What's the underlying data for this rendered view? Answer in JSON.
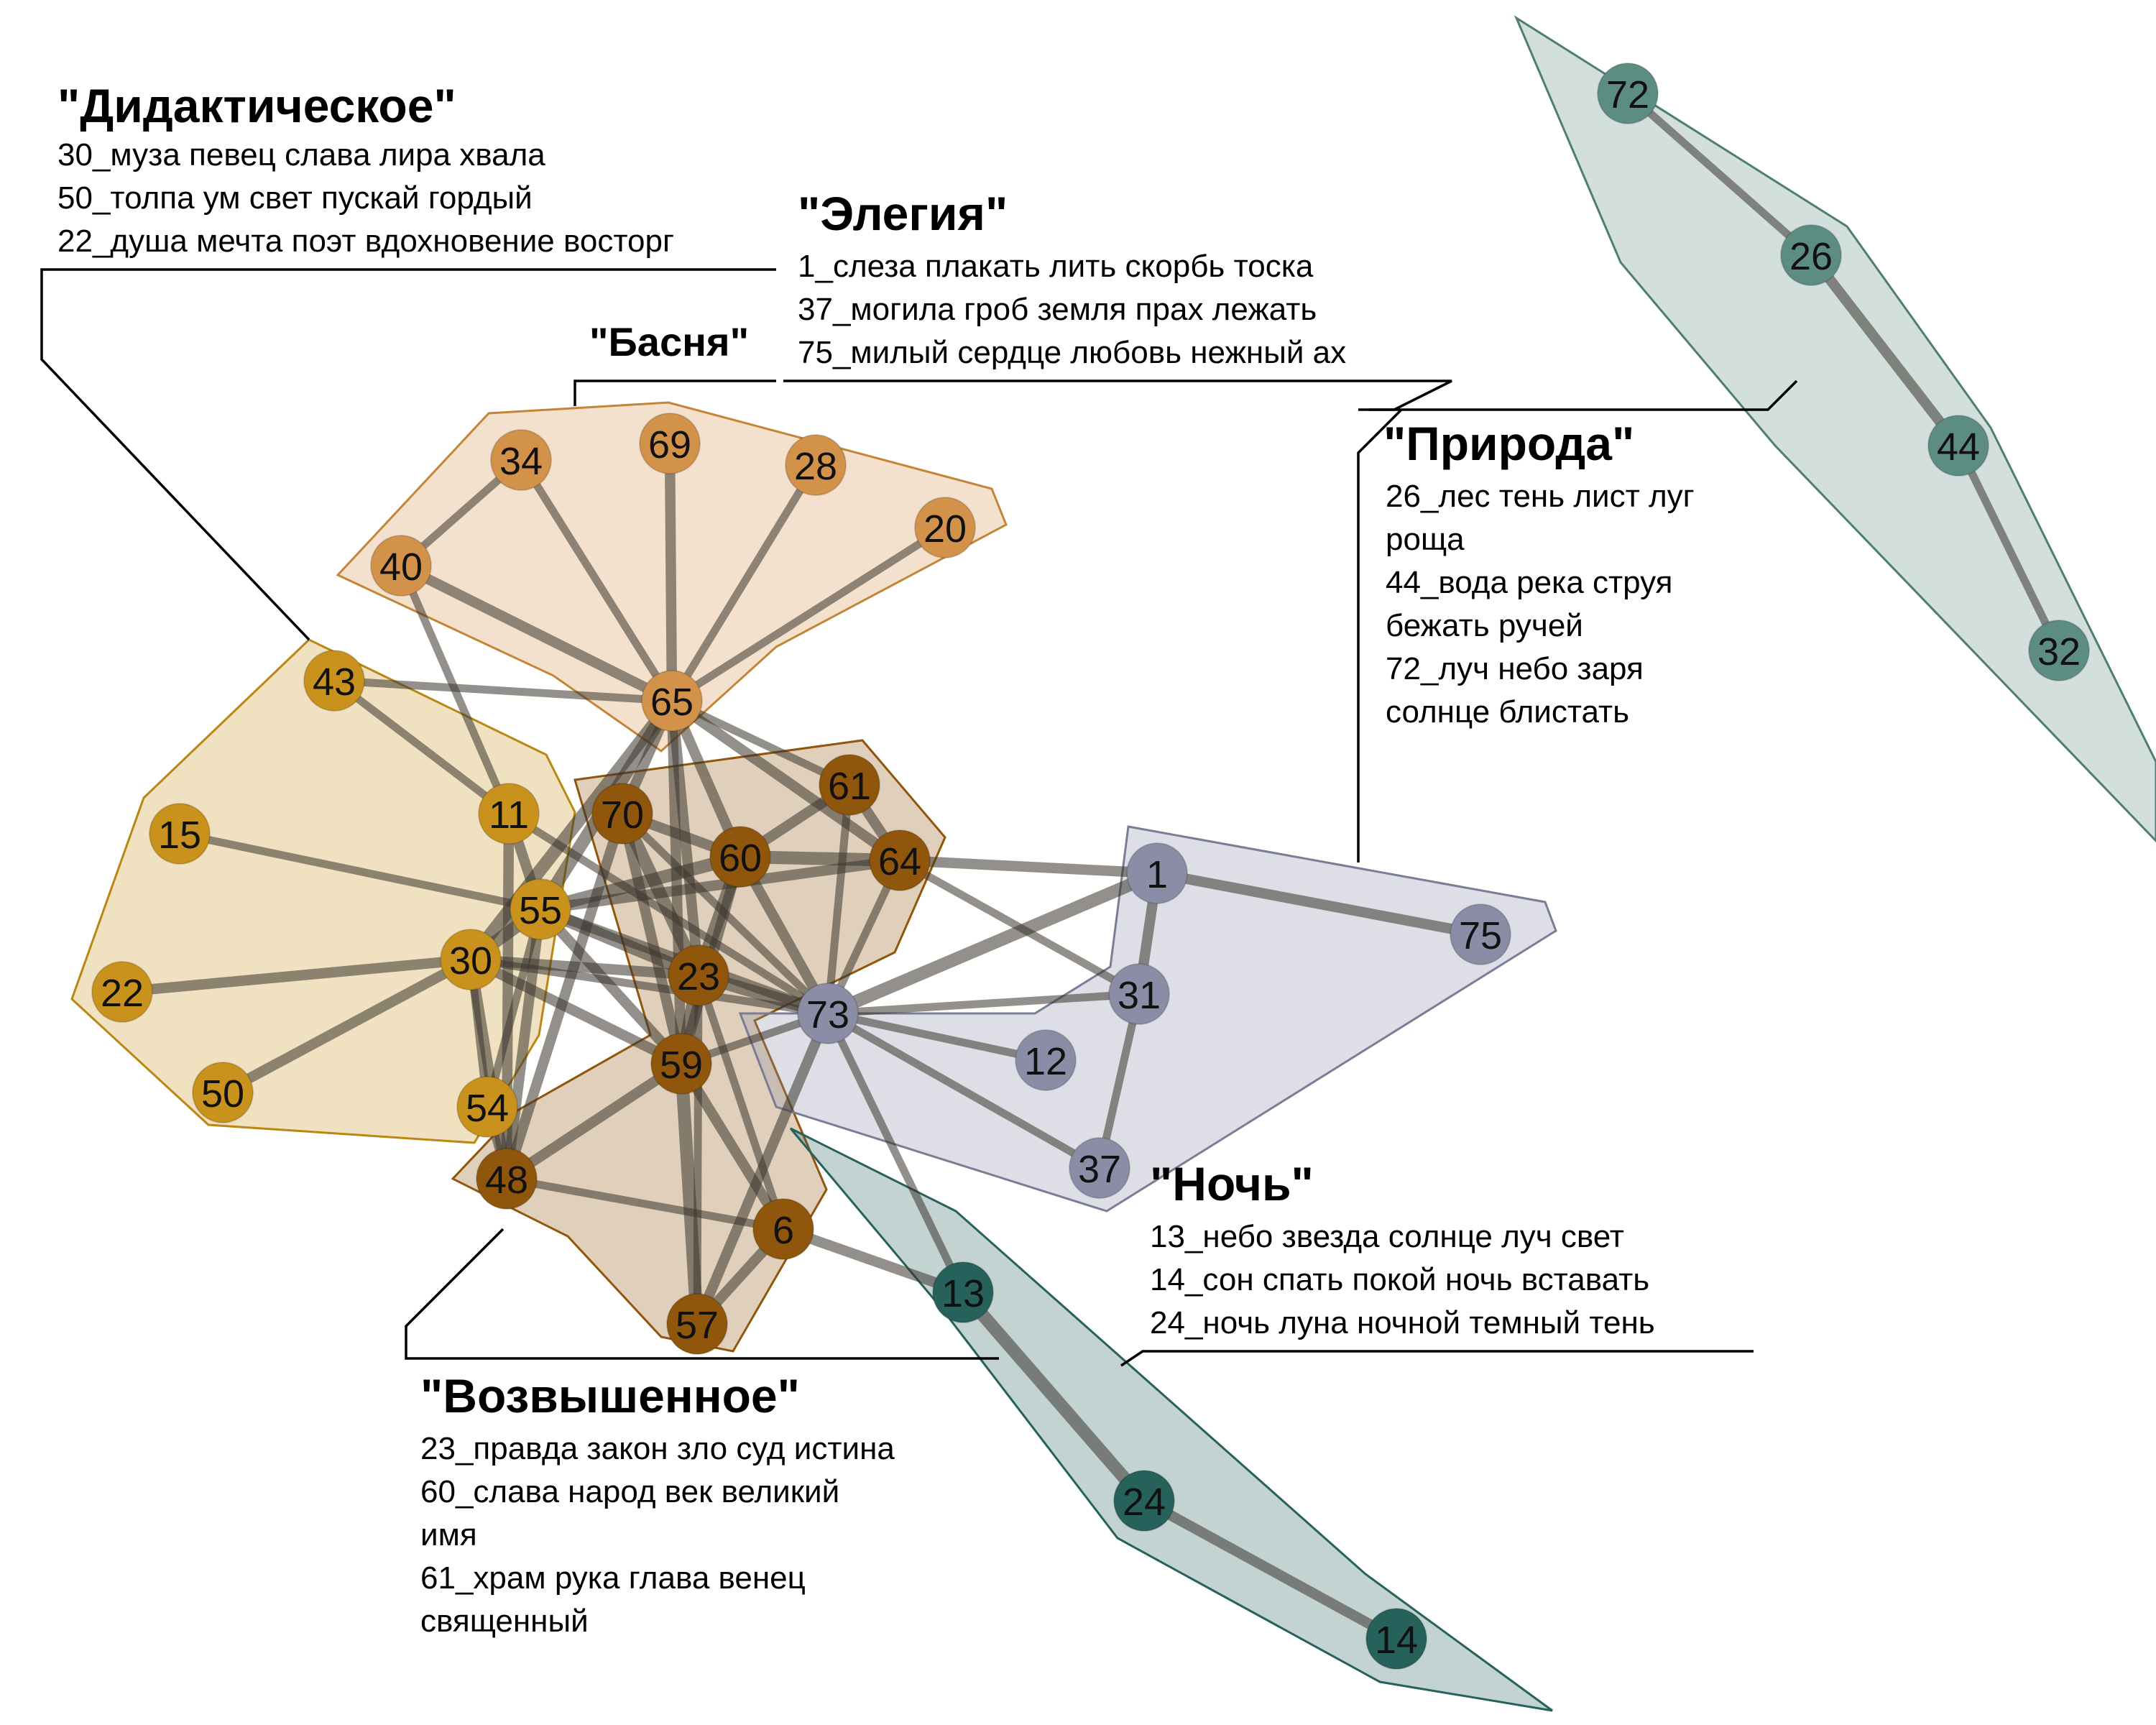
{
  "clusters": [
    {
      "id": "didactic",
      "title": "\"Дидактическое\"",
      "lines": [
        "30_муза певец слава лира хвала",
        "50_толпа ум свет пускай гордый",
        "22_душа мечта поэт вдохновение восторг"
      ],
      "color": "#c9921c",
      "nodes": [
        "43",
        "15",
        "22",
        "50",
        "54",
        "30",
        "55",
        "11"
      ]
    },
    {
      "id": "elegy",
      "title": "\"Элегия\"",
      "lines": [
        "1_слеза плакать лить скорбь тоска",
        "37_могила гроб земля прах лежать",
        "75_милый сердце любовь нежный ах"
      ],
      "color": "#8a8da5",
      "nodes": [
        "1",
        "75",
        "31",
        "12",
        "37",
        "73"
      ]
    },
    {
      "id": "fable",
      "title": "\"Басня\"",
      "lines": [],
      "color": "#d3924a",
      "nodes": [
        "40",
        "34",
        "69",
        "28",
        "20",
        "65"
      ]
    },
    {
      "id": "nature",
      "title": "\"Природа\"",
      "lines": [
        "26_лес тень лист луг",
        "роща",
        "44_вода река струя",
        "бежать ручей",
        "72_луч небо заря",
        "солнце блистать"
      ],
      "color": "#5d8d82",
      "nodes": [
        "72",
        "26",
        "44",
        "32"
      ]
    },
    {
      "id": "night",
      "title": "\"Ночь\"",
      "lines": [
        "13_небо звезда солнце луч свет",
        "14_сон спать покой ночь вставать",
        "24_ночь луна ночной темный тень"
      ],
      "color": "#27615c",
      "nodes": [
        "13",
        "24",
        "14"
      ]
    },
    {
      "id": "sublime",
      "title": "\"Возвышенное\"",
      "lines": [
        "23_правда закон зло суд истина",
        "60_слава народ век великий",
        "имя",
        "61_храм рука глава венец",
        "священный"
      ],
      "color": "#8f560c",
      "nodes": [
        "70",
        "60",
        "61",
        "64",
        "23",
        "59",
        "48",
        "6",
        "57"
      ]
    }
  ],
  "edges": [
    [
      "40",
      "34",
      2
    ],
    [
      "40",
      "65",
      3
    ],
    [
      "34",
      "65",
      2
    ],
    [
      "69",
      "65",
      3
    ],
    [
      "28",
      "65",
      2
    ],
    [
      "20",
      "65",
      2
    ],
    [
      "40",
      "11",
      2
    ],
    [
      "43",
      "65",
      2
    ],
    [
      "43",
      "11",
      2
    ],
    [
      "15",
      "55",
      2
    ],
    [
      "22",
      "30",
      3
    ],
    [
      "50",
      "30",
      3
    ],
    [
      "55",
      "30",
      4
    ],
    [
      "11",
      "55",
      3
    ],
    [
      "54",
      "30",
      2
    ],
    [
      "54",
      "55",
      2
    ],
    [
      "54",
      "48",
      2
    ],
    [
      "65",
      "55",
      4
    ],
    [
      "65",
      "30",
      4
    ],
    [
      "65",
      "70",
      3
    ],
    [
      "65",
      "60",
      3
    ],
    [
      "65",
      "61",
      2
    ],
    [
      "65",
      "64",
      3
    ],
    [
      "65",
      "23",
      3
    ],
    [
      "65",
      "59",
      3
    ],
    [
      "70",
      "60",
      3
    ],
    [
      "70",
      "23",
      4
    ],
    [
      "70",
      "59",
      3
    ],
    [
      "60",
      "61",
      3
    ],
    [
      "60",
      "64",
      4
    ],
    [
      "61",
      "64",
      3
    ],
    [
      "60",
      "23",
      4
    ],
    [
      "23",
      "59",
      4
    ],
    [
      "55",
      "60",
      4
    ],
    [
      "55",
      "64",
      3
    ],
    [
      "55",
      "23",
      4
    ],
    [
      "55",
      "73",
      3
    ],
    [
      "55",
      "48",
      3
    ],
    [
      "55",
      "59",
      3
    ],
    [
      "30",
      "48",
      3
    ],
    [
      "30",
      "23",
      3
    ],
    [
      "30",
      "73",
      2
    ],
    [
      "30",
      "59",
      3
    ],
    [
      "11",
      "48",
      3
    ],
    [
      "11",
      "73",
      2
    ],
    [
      "70",
      "48",
      3
    ],
    [
      "60",
      "59",
      3
    ],
    [
      "59",
      "48",
      3
    ],
    [
      "48",
      "6",
      2
    ],
    [
      "6",
      "59",
      3
    ],
    [
      "6",
      "57",
      3
    ],
    [
      "57",
      "59",
      4
    ],
    [
      "57",
      "23",
      2
    ],
    [
      "6",
      "23",
      2
    ],
    [
      "6",
      "13",
      3
    ],
    [
      "64",
      "1",
      3
    ],
    [
      "64",
      "31",
      2
    ],
    [
      "64",
      "73",
      2
    ],
    [
      "60",
      "73",
      3
    ],
    [
      "61",
      "73",
      2
    ],
    [
      "70",
      "73",
      2
    ],
    [
      "23",
      "73",
      4
    ],
    [
      "59",
      "73",
      2
    ],
    [
      "73",
      "1",
      4
    ],
    [
      "73",
      "31",
      2
    ],
    [
      "73",
      "12",
      2
    ],
    [
      "73",
      "37",
      2
    ],
    [
      "73",
      "13",
      2
    ],
    [
      "73",
      "57",
      3
    ],
    [
      "1",
      "31",
      3
    ],
    [
      "1",
      "75",
      3
    ],
    [
      "31",
      "37",
      2
    ],
    [
      "72",
      "26",
      2
    ],
    [
      "26",
      "44",
      3
    ],
    [
      "44",
      "32",
      2
    ],
    [
      "13",
      "24",
      4
    ],
    [
      "24",
      "14",
      3
    ]
  ]
}
